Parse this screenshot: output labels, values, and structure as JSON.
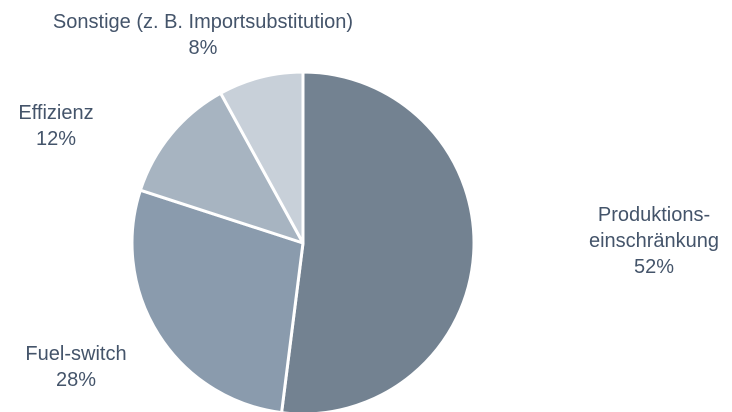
{
  "chart_data": {
    "type": "pie",
    "title": "",
    "start_angle_deg": 0,
    "direction": "clockwise",
    "slices": [
      {
        "name": "Produktionseinschränkung",
        "label_lines": [
          "Produktions-",
          "einschränkung"
        ],
        "value": 52,
        "value_label": "52%",
        "color": "#738291"
      },
      {
        "name": "Fuel-switch",
        "label_lines": [
          "Fuel-switch"
        ],
        "value": 28,
        "value_label": "28%",
        "color": "#8a9bad"
      },
      {
        "name": "Effizienz",
        "label_lines": [
          "Effizienz"
        ],
        "value": 12,
        "value_label": "12%",
        "color": "#a7b4c1"
      },
      {
        "name": "Sonstige (z. B. Importsubstitution)",
        "label_lines": [
          "Sonstige (z. B. Importsubstitution)"
        ],
        "value": 8,
        "value_label": "8%",
        "color": "#c8d0d9"
      }
    ],
    "slice_border_color": "#ffffff",
    "label_color": "#44546a"
  }
}
